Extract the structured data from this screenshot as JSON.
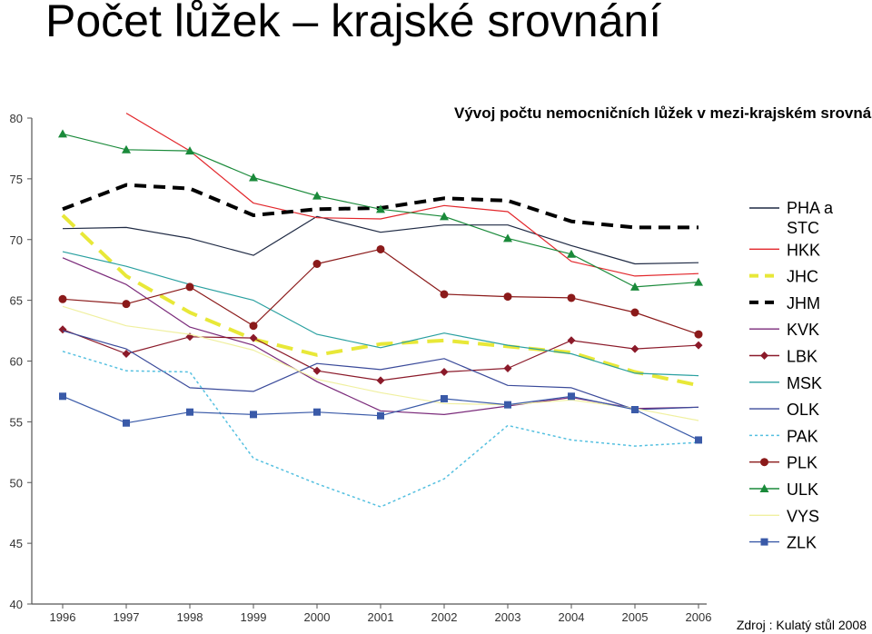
{
  "header": {
    "title": "Počet lůžek – krajské srovnání"
  },
  "source": "Zdroj : Kulatý stůl 2008",
  "chart_data": {
    "type": "line",
    "title": "Vývoj počtu nemocničních lůžek v mezi-krajském srovnání",
    "xlabel": "",
    "ylabel": "",
    "ylim": [
      40,
      80
    ],
    "yticks": [
      40,
      45,
      50,
      55,
      60,
      65,
      70,
      75,
      80
    ],
    "categories": [
      "1996",
      "1997",
      "1998",
      "1999",
      "2000",
      "2001",
      "2002",
      "2003",
      "2004",
      "2005",
      "2006"
    ],
    "grid": false,
    "legend_position": "right",
    "series": [
      {
        "name": "PHA a STC",
        "color": "#1f2a44",
        "marker": "none",
        "dash": "solid",
        "values": [
          70.9,
          71.0,
          70.1,
          68.7,
          71.9,
          70.6,
          71.2,
          71.2,
          69.5,
          68.0,
          68.1
        ]
      },
      {
        "name": "HKK",
        "color": "#e2262b",
        "marker": "none",
        "dash": "solid",
        "values": [
          null,
          80.4,
          77.3,
          73.0,
          71.8,
          71.7,
          72.8,
          72.3,
          68.2,
          67.0,
          67.2
        ]
      },
      {
        "name": "JHC",
        "color": "#e8e838",
        "marker": "none",
        "dash": "dashed-thick",
        "values": [
          72.0,
          67.0,
          64.0,
          61.8,
          60.5,
          61.4,
          61.7,
          61.2,
          60.7,
          59.1,
          58.0
        ]
      },
      {
        "name": "JHM",
        "color": "#000000",
        "marker": "none",
        "dash": "dashed-thick",
        "values": [
          72.5,
          74.5,
          74.2,
          72.0,
          72.5,
          72.6,
          73.4,
          73.2,
          71.5,
          71.0,
          71.0
        ]
      },
      {
        "name": "KVK",
        "color": "#7a2a7a",
        "marker": "none",
        "dash": "solid",
        "values": [
          68.5,
          66.3,
          62.8,
          61.3,
          58.3,
          55.9,
          55.6,
          56.3,
          57.0,
          56.1,
          56.2
        ]
      },
      {
        "name": "LBK",
        "color": "#8b1a2a",
        "marker": "diamond",
        "dash": "solid",
        "values": [
          62.6,
          60.6,
          62.0,
          61.9,
          59.2,
          58.4,
          59.1,
          59.4,
          61.7,
          61.0,
          61.3
        ]
      },
      {
        "name": "MSK",
        "color": "#2aa0a0",
        "marker": "none",
        "dash": "solid",
        "values": [
          69.0,
          67.8,
          66.3,
          65.0,
          62.2,
          61.1,
          62.3,
          61.3,
          60.6,
          59.0,
          58.8
        ]
      },
      {
        "name": "OLK",
        "color": "#3a4a9a",
        "marker": "none",
        "dash": "solid",
        "values": [
          62.5,
          61.0,
          57.8,
          57.5,
          59.8,
          59.3,
          60.2,
          58.0,
          57.8,
          56.0,
          56.2
        ]
      },
      {
        "name": "PAK",
        "color": "#55c0e0",
        "marker": "none",
        "dash": "dotted",
        "values": [
          60.8,
          59.2,
          59.1,
          52.0,
          49.9,
          48.0,
          50.3,
          54.7,
          53.5,
          53.0,
          53.3
        ]
      },
      {
        "name": "PLK",
        "color": "#8b1a1a",
        "marker": "circle",
        "dash": "solid",
        "values": [
          65.1,
          64.7,
          66.1,
          62.9,
          68.0,
          69.2,
          65.5,
          65.3,
          65.2,
          64.0,
          62.2
        ]
      },
      {
        "name": "ULK",
        "color": "#1a8a3a",
        "marker": "triangle",
        "dash": "solid",
        "values": [
          78.7,
          77.4,
          77.3,
          75.1,
          73.6,
          72.5,
          71.9,
          70.1,
          68.8,
          66.1,
          66.5
        ]
      },
      {
        "name": "VYS",
        "color": "#f0f0a0",
        "marker": "none",
        "dash": "solid",
        "values": [
          64.5,
          62.9,
          62.2,
          60.9,
          58.5,
          57.4,
          56.5,
          56.4,
          56.8,
          56.1,
          55.1
        ]
      },
      {
        "name": "ZLK",
        "color": "#3a5aa8",
        "marker": "square",
        "dash": "solid",
        "values": [
          57.1,
          54.9,
          55.8,
          55.6,
          55.8,
          55.5,
          56.9,
          56.4,
          57.1,
          56.0,
          53.5
        ]
      }
    ]
  }
}
